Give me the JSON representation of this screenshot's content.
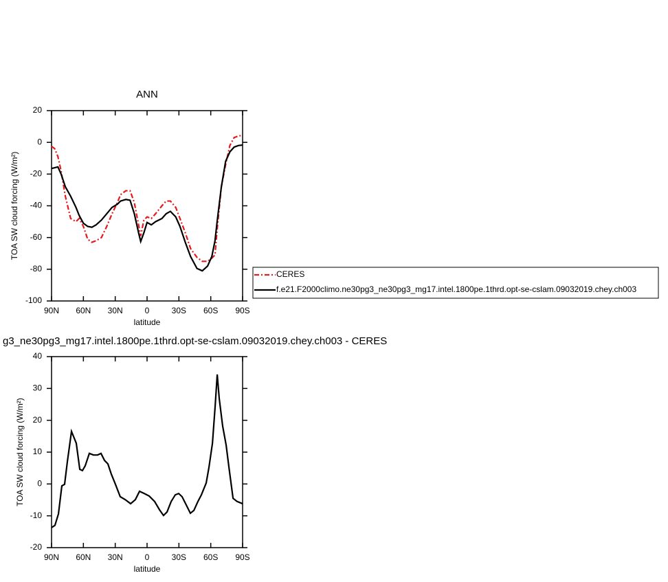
{
  "chart_data": [
    {
      "type": "line",
      "title": "ANN",
      "xlabel": "latitude",
      "ylabel": "TOA SW cloud forcing (W/m²)",
      "x": [
        90,
        87,
        84,
        81,
        77,
        72,
        67,
        64,
        60,
        56,
        52,
        48,
        43,
        38,
        33,
        28,
        25,
        20,
        16,
        12,
        8,
        6,
        3,
        0,
        -4,
        -8,
        -14,
        -18,
        -22,
        -27,
        -31,
        -36,
        -41,
        -47,
        -52,
        -57,
        -61,
        -64,
        -66,
        -70,
        -74,
        -78,
        -82,
        -86,
        -90
      ],
      "series": [
        {
          "name": "CERES",
          "color": "#e41a1c",
          "linestyle": "dashed",
          "values": [
            -2.5,
            -4,
            -9,
            -18,
            -34,
            -48,
            -50,
            -48,
            -53,
            -61,
            -63,
            -62,
            -60,
            -53,
            -45,
            -38,
            -33,
            -30.5,
            -30.5,
            -38,
            -52,
            -59,
            -49,
            -47,
            -48,
            -45,
            -40,
            -37,
            -37,
            -41,
            -48,
            -57,
            -67,
            -72.5,
            -75,
            -75,
            -73,
            -71,
            -55,
            -28,
            -14,
            -2,
            3,
            4,
            4.5
          ]
        },
        {
          "name": "f.e21.F2000climo.ne30pg3_ne30pg3_mg17.intel.1800pe.1thrd.opt-se-cslam.09032019.chey.ch003",
          "color": "#000000",
          "linestyle": "solid",
          "values": [
            -16.5,
            -16,
            -15.5,
            -20,
            -28,
            -34,
            -41,
            -46,
            -51,
            -53,
            -53.5,
            -52,
            -49,
            -45,
            -41,
            -39,
            -37,
            -36,
            -36.5,
            -45,
            -57,
            -62.5,
            -57,
            -50.5,
            -52,
            -50,
            -48,
            -45,
            -43.5,
            -47,
            -53,
            -63,
            -72,
            -79.5,
            -81,
            -78,
            -72,
            -62,
            -50,
            -28,
            -12,
            -6,
            -3,
            -2,
            -1.7
          ]
        }
      ],
      "xlim": [
        90,
        -90
      ],
      "xticks": [
        {
          "value": 90,
          "label": "90N"
        },
        {
          "value": 60,
          "label": "60N"
        },
        {
          "value": 30,
          "label": "30N"
        },
        0,
        {
          "value": -30,
          "label": "30S"
        },
        {
          "value": -60,
          "label": "60S"
        },
        {
          "value": -90,
          "label": "90S"
        }
      ],
      "ylim": [
        -100,
        20
      ],
      "yticks": [
        -100,
        -80,
        -60,
        -40,
        -20,
        0,
        20
      ],
      "legend": "outside-right"
    },
    {
      "type": "line",
      "title": "g3_ne30pg3_mg17.intel.1800pe.1thrd.opt-se-cslam.09032019.chey.ch003 - CERES",
      "xlabel": "latitude",
      "ylabel": "TOA SW cloud forcing (W/m²)",
      "x": [
        90,
        86.8,
        83.5,
        80.3,
        77.7,
        75.1,
        71.2,
        66.7,
        63.4,
        60.9,
        58.3,
        54.4,
        50.5,
        46.6,
        43.4,
        40.1,
        36.9,
        33.7,
        29.8,
        25.3,
        20.7,
        15.5,
        11,
        7.1,
        2.6,
        -2,
        -7.1,
        -11.7,
        -15.5,
        -18.8,
        -22.7,
        -26.6,
        -29.8,
        -33,
        -36.9,
        -40.8,
        -44.1,
        -47.9,
        -51.2,
        -55.7,
        -58.3,
        -61.6,
        -64.2,
        -66.1,
        -68,
        -71.2,
        -74.5,
        -77.1,
        -81,
        -84.8,
        -90
      ],
      "series": [
        {
          "color": "#000000",
          "linestyle": "solid",
          "values": [
            -13.7,
            -13,
            -9.4,
            -0.6,
            -0.1,
            7,
            16.5,
            12.8,
            4.6,
            4.2,
            5.7,
            9.6,
            9.1,
            9.1,
            9.6,
            7.4,
            6.3,
            3.1,
            -0.1,
            -4,
            -4.9,
            -6.2,
            -4.9,
            -2.3,
            -3,
            -3.8,
            -5.5,
            -8.1,
            -9.9,
            -8.8,
            -5.5,
            -3.4,
            -3,
            -4,
            -6.6,
            -9.2,
            -8.3,
            -5.5,
            -3.4,
            0.3,
            5.2,
            12.8,
            24.7,
            34.4,
            26.8,
            18.2,
            12.2,
            5.3,
            -4.5,
            -5.5,
            -6.2
          ]
        }
      ],
      "xlim": [
        90,
        -90
      ],
      "xticks": [
        {
          "value": 90,
          "label": "90N"
        },
        {
          "value": 60,
          "label": "60N"
        },
        {
          "value": 30,
          "label": "30N"
        },
        0,
        {
          "value": -30,
          "label": "30S"
        },
        {
          "value": -60,
          "label": "60S"
        },
        {
          "value": -90,
          "label": "90S"
        }
      ],
      "ylim": [
        -20,
        40
      ],
      "yticks": [
        -20,
        -10,
        0,
        10,
        20,
        30,
        40
      ]
    }
  ]
}
